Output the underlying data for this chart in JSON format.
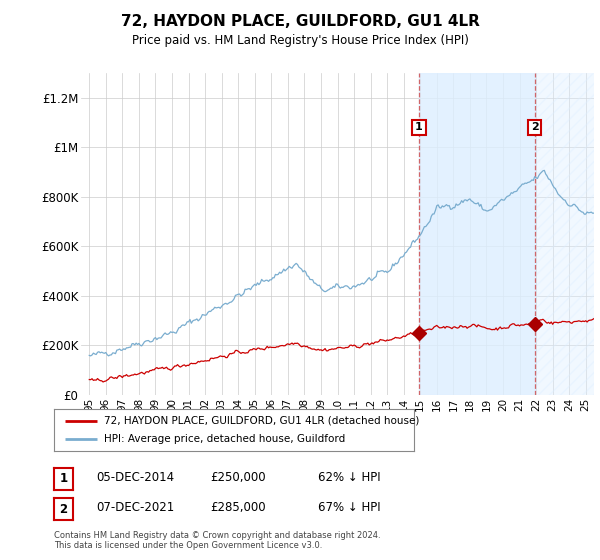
{
  "title": "72, HAYDON PLACE, GUILDFORD, GU1 4LR",
  "subtitle": "Price paid vs. HM Land Registry's House Price Index (HPI)",
  "ylabel_ticks": [
    "£0",
    "£200K",
    "£400K",
    "£600K",
    "£800K",
    "£1M",
    "£1.2M"
  ],
  "ylim": [
    0,
    1300000
  ],
  "xlim_start": 1994.5,
  "xlim_end": 2025.5,
  "sale1_year": 2014.92,
  "sale1_price": 250000,
  "sale2_year": 2021.92,
  "sale2_price": 285000,
  "legend_house": "72, HAYDON PLACE, GUILDFORD, GU1 4LR (detached house)",
  "legend_hpi": "HPI: Average price, detached house, Guildford",
  "ann1_date": "05-DEC-2014",
  "ann1_price": "£250,000",
  "ann1_hpi": "62% ↓ HPI",
  "ann2_date": "07-DEC-2021",
  "ann2_price": "£285,000",
  "ann2_hpi": "67% ↓ HPI",
  "footnote": "Contains HM Land Registry data © Crown copyright and database right 2024.\nThis data is licensed under the Open Government Licence v3.0.",
  "line_color_house": "#cc0000",
  "line_color_hpi": "#7aadcf",
  "shade_color": "#ddeeff",
  "bg_color": "#ffffff",
  "grid_color": "#cccccc",
  "sale_marker_color": "#aa0000",
  "dashed_line_color": "#cc4444"
}
